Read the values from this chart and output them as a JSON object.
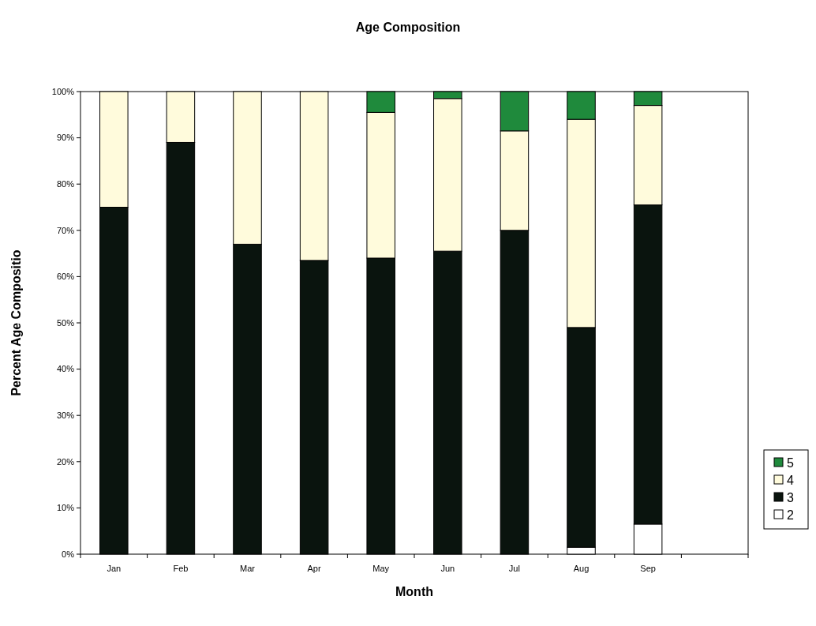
{
  "chart_data": {
    "type": "bar",
    "title": "Age Composition",
    "xlabel": "Month",
    "ylabel": "Percent Age Compositio",
    "stacked": true,
    "categories": [
      "Jan",
      "Feb",
      "Mar",
      "Apr",
      "May",
      "Jun",
      "Jul",
      "Aug",
      "Sep",
      null
    ],
    "series": [
      {
        "name": "2",
        "color": "#ffffff",
        "values": [
          0,
          0,
          0,
          0,
          0,
          0,
          0,
          1.5,
          6.5,
          null
        ]
      },
      {
        "name": "3",
        "color": "#0a140e",
        "values": [
          75,
          89,
          67,
          63.5,
          64,
          65.5,
          70,
          47.5,
          69,
          null
        ]
      },
      {
        "name": "4",
        "color": "#fffbdc",
        "values": [
          25,
          11,
          33,
          36.5,
          31.5,
          33,
          21.5,
          45,
          21.5,
          null
        ]
      },
      {
        "name": "5",
        "color": "#1f8a3c",
        "values": [
          0,
          0,
          0,
          0,
          4.5,
          1.5,
          8.5,
          6,
          3,
          null
        ]
      }
    ],
    "ylim": [
      0,
      100
    ],
    "yticks": [
      {
        "value": 0,
        "label": "0%"
      },
      {
        "value": 10,
        "label": "10%"
      },
      {
        "value": 20,
        "label": "20%"
      },
      {
        "value": 30,
        "label": "30%"
      },
      {
        "value": 40,
        "label": "40%"
      },
      {
        "value": 50,
        "label": "50%"
      },
      {
        "value": 60,
        "label": "60%"
      },
      {
        "value": 70,
        "label": "70%"
      },
      {
        "value": 80,
        "label": "80%"
      },
      {
        "value": 90,
        "label": "90%"
      },
      {
        "value": 100,
        "label": "100%"
      }
    ],
    "grid": false,
    "legend": "right"
  }
}
